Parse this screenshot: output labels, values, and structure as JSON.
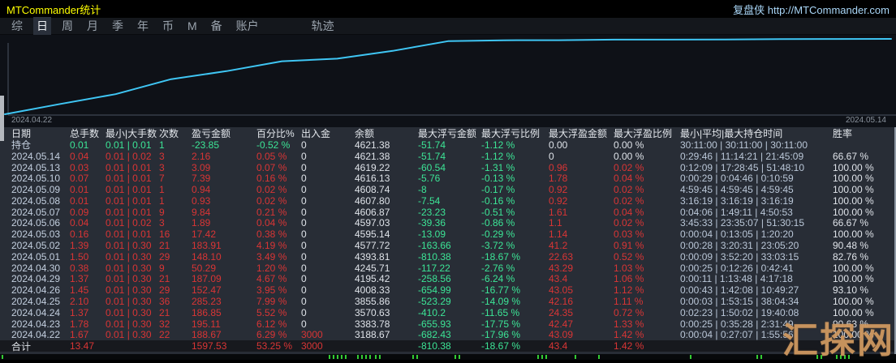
{
  "window": {
    "title": "MTCommander统计",
    "site_link": "复盘侠 http://MTCommander.com"
  },
  "menu": {
    "items": [
      "综",
      "日",
      "周",
      "月",
      "季",
      "年",
      "币",
      "M",
      "备",
      "账户"
    ],
    "active_index": 1,
    "trail_item": "轨迹"
  },
  "chart_data": {
    "type": "line",
    "title": "",
    "x_start_label": "2024.04.22",
    "x_end_label": "2024.05.14",
    "x": [
      "2024.04.22",
      "2024.04.23",
      "2024.04.24",
      "2024.04.25",
      "2024.04.26",
      "2024.04.29",
      "2024.04.30",
      "2024.05.01",
      "2024.05.02",
      "2024.05.03",
      "2024.05.06",
      "2024.05.07",
      "2024.05.08",
      "2024.05.09",
      "2024.05.10",
      "2024.05.13",
      "2024.05.14"
    ],
    "series": [
      {
        "name": "余额",
        "values": [
          3188.67,
          3383.78,
          3570.63,
          3855.86,
          4008.33,
          4195.42,
          4245.71,
          4393.81,
          4577.72,
          4595.14,
          4597.03,
          4606.87,
          4607.8,
          4608.74,
          4616.13,
          4619.22,
          4621.38
        ]
      }
    ],
    "ylim": [
      3188.67,
      4621.38
    ],
    "grid": false,
    "line_color": "#3fc6f4",
    "axis_color": "#4a5360"
  },
  "colors": {
    "title_yellow": "#ffff00",
    "link_blue": "#a9d6f7",
    "positive_red": "#d93535",
    "floating_green": "#3ce596",
    "line_cyan": "#3fc6f4"
  },
  "table": {
    "headers": [
      "日期",
      "总手数",
      "最小|大手数",
      "次数",
      "盈亏金额",
      "百分比%",
      "出入金",
      "余额",
      "最大浮亏金额",
      "最大浮亏比例",
      "最大浮盈金额",
      "最大浮盈比例",
      "最小|平均|最大持仓时间",
      "胜率"
    ],
    "rows": [
      {
        "type": "position",
        "cells": [
          "持仓",
          "0.01",
          "0.01 | 0.01",
          "1",
          "-23.85",
          "-0.52 %",
          "0",
          "4621.38",
          "-51.74",
          "-1.12 %",
          "0.00",
          "0.00 %",
          "30:11:00 | 30:11:00 | 30:11:00",
          ""
        ],
        "colors": [
          "d",
          "g",
          "g",
          "g",
          "g",
          "g",
          "w",
          "w",
          "g",
          "g",
          "w",
          "w",
          "t",
          "w"
        ]
      },
      {
        "type": "normal",
        "cells": [
          "2024.05.14",
          "0.04",
          "0.01 | 0.02",
          "3",
          "2.16",
          "0.05 %",
          "0",
          "4621.38",
          "-51.74",
          "-1.12 %",
          "0",
          "0.00 %",
          "0:29:46 | 11:14:21 | 21:45:09",
          "66.67 %"
        ],
        "colors": [
          "d",
          "r",
          "r",
          "r",
          "r",
          "r",
          "w",
          "w",
          "g",
          "g",
          "w",
          "w",
          "t",
          "w"
        ]
      },
      {
        "type": "normal",
        "cells": [
          "2024.05.13",
          "0.03",
          "0.01 | 0.01",
          "3",
          "3.09",
          "0.07 %",
          "0",
          "4619.22",
          "-60.54",
          "-1.31 %",
          "0.96",
          "0.02 %",
          "0:12:09 | 17:28:45 | 51:48:10",
          "100.00 %"
        ],
        "colors": [
          "d",
          "r",
          "r",
          "r",
          "r",
          "r",
          "w",
          "w",
          "g",
          "g",
          "r",
          "r",
          "t",
          "w"
        ]
      },
      {
        "type": "normal",
        "cells": [
          "2024.05.10",
          "0.07",
          "0.01 | 0.01",
          "7",
          "7.39",
          "0.16 %",
          "0",
          "4616.13",
          "-5.76",
          "-0.13 %",
          "1.78",
          "0.04 %",
          "0:00:29 | 0:04:46 | 0:10:59",
          "100.00 %"
        ],
        "colors": [
          "d",
          "r",
          "r",
          "r",
          "r",
          "r",
          "w",
          "w",
          "g",
          "g",
          "r",
          "r",
          "t",
          "w"
        ]
      },
      {
        "type": "normal",
        "cells": [
          "2024.05.09",
          "0.01",
          "0.01 | 0.01",
          "1",
          "0.94",
          "0.02 %",
          "0",
          "4608.74",
          "-8",
          "-0.17 %",
          "0.92",
          "0.02 %",
          "4:59:45 | 4:59:45 | 4:59:45",
          "100.00 %"
        ],
        "colors": [
          "d",
          "r",
          "r",
          "r",
          "r",
          "r",
          "w",
          "w",
          "g",
          "g",
          "r",
          "r",
          "t",
          "w"
        ]
      },
      {
        "type": "normal",
        "cells": [
          "2024.05.08",
          "0.01",
          "0.01 | 0.01",
          "1",
          "0.93",
          "0.02 %",
          "0",
          "4607.80",
          "-7.54",
          "-0.16 %",
          "0.92",
          "0.02 %",
          "3:16:19 | 3:16:19 | 3:16:19",
          "100.00 %"
        ],
        "colors": [
          "d",
          "r",
          "r",
          "r",
          "r",
          "r",
          "w",
          "w",
          "g",
          "g",
          "r",
          "r",
          "t",
          "w"
        ]
      },
      {
        "type": "normal",
        "cells": [
          "2024.05.07",
          "0.09",
          "0.01 | 0.01",
          "9",
          "9.84",
          "0.21 %",
          "0",
          "4606.87",
          "-23.23",
          "-0.51 %",
          "1.61",
          "0.04 %",
          "0:04:06 | 1:49:11 | 4:50:53",
          "100.00 %"
        ],
        "colors": [
          "d",
          "r",
          "r",
          "r",
          "r",
          "r",
          "w",
          "w",
          "g",
          "g",
          "r",
          "r",
          "t",
          "w"
        ]
      },
      {
        "type": "normal",
        "cells": [
          "2024.05.06",
          "0.04",
          "0.01 | 0.02",
          "3",
          "1.89",
          "0.04 %",
          "0",
          "4597.03",
          "-39.36",
          "-0.86 %",
          "1.1",
          "0.02 %",
          "3:45:33 | 23:35:07 | 51:30:15",
          "66.67 %"
        ],
        "colors": [
          "d",
          "r",
          "r",
          "r",
          "r",
          "r",
          "w",
          "w",
          "g",
          "g",
          "r",
          "r",
          "t",
          "w"
        ]
      },
      {
        "type": "normal",
        "cells": [
          "2024.05.03",
          "0.16",
          "0.01 | 0.01",
          "16",
          "17.42",
          "0.38 %",
          "0",
          "4595.14",
          "-13.09",
          "-0.29 %",
          "1.14",
          "0.03 %",
          "0:00:04 | 0:13:05 | 1:20:20",
          "100.00 %"
        ],
        "colors": [
          "d",
          "r",
          "r",
          "r",
          "r",
          "r",
          "w",
          "w",
          "g",
          "g",
          "r",
          "r",
          "t",
          "w"
        ]
      },
      {
        "type": "normal",
        "cells": [
          "2024.05.02",
          "1.39",
          "0.01 | 0.30",
          "21",
          "183.91",
          "4.19 %",
          "0",
          "4577.72",
          "-163.66",
          "-3.72 %",
          "41.2",
          "0.91 %",
          "0:00:28 | 3:20:31 | 23:05:20",
          "90.48 %"
        ],
        "colors": [
          "d",
          "r",
          "r",
          "r",
          "r",
          "r",
          "w",
          "w",
          "g",
          "g",
          "r",
          "r",
          "t",
          "w"
        ]
      },
      {
        "type": "normal",
        "cells": [
          "2024.05.01",
          "1.50",
          "0.01 | 0.30",
          "29",
          "148.10",
          "3.49 %",
          "0",
          "4393.81",
          "-810.38",
          "-18.67 %",
          "22.63",
          "0.52 %",
          "0:00:09 | 3:52:20 | 33:03:15",
          "82.76 %"
        ],
        "colors": [
          "d",
          "r",
          "r",
          "r",
          "r",
          "r",
          "w",
          "w",
          "g",
          "g",
          "r",
          "r",
          "t",
          "w"
        ]
      },
      {
        "type": "normal",
        "cells": [
          "2024.04.30",
          "0.38",
          "0.01 | 0.30",
          "9",
          "50.29",
          "1.20 %",
          "0",
          "4245.71",
          "-117.22",
          "-2.76 %",
          "43.29",
          "1.03 %",
          "0:00:25 | 0:12:26 | 0:42:41",
          "100.00 %"
        ],
        "colors": [
          "d",
          "r",
          "r",
          "r",
          "r",
          "r",
          "w",
          "w",
          "g",
          "g",
          "r",
          "r",
          "t",
          "w"
        ]
      },
      {
        "type": "normal",
        "cells": [
          "2024.04.29",
          "1.37",
          "0.01 | 0.30",
          "21",
          "187.09",
          "4.67 %",
          "0",
          "4195.42",
          "-258.56",
          "-6.24 %",
          "43.4",
          "1.06 %",
          "0:00:11 | 1:13:48 | 4:17:18",
          "100.00 %"
        ],
        "colors": [
          "d",
          "r",
          "r",
          "r",
          "r",
          "r",
          "w",
          "w",
          "g",
          "g",
          "r",
          "r",
          "t",
          "w"
        ]
      },
      {
        "type": "normal",
        "cells": [
          "2024.04.26",
          "1.45",
          "0.01 | 0.30",
          "29",
          "152.47",
          "3.95 %",
          "0",
          "4008.33",
          "-654.99",
          "-16.77 %",
          "43.05",
          "1.12 %",
          "0:00:43 | 1:42:08 | 10:49:27",
          "93.10 %"
        ],
        "colors": [
          "d",
          "r",
          "r",
          "r",
          "r",
          "r",
          "w",
          "w",
          "g",
          "g",
          "r",
          "r",
          "t",
          "w"
        ]
      },
      {
        "type": "normal",
        "cells": [
          "2024.04.25",
          "2.10",
          "0.01 | 0.30",
          "36",
          "285.23",
          "7.99 %",
          "0",
          "3855.86",
          "-523.29",
          "-14.09 %",
          "42.16",
          "1.11 %",
          "0:00:03 | 1:53:15 | 38:04:34",
          "100.00 %"
        ],
        "colors": [
          "d",
          "r",
          "r",
          "r",
          "r",
          "r",
          "w",
          "w",
          "g",
          "g",
          "r",
          "r",
          "t",
          "w"
        ]
      },
      {
        "type": "normal",
        "cells": [
          "2024.04.24",
          "1.37",
          "0.01 | 0.30",
          "21",
          "186.85",
          "5.52 %",
          "0",
          "3570.63",
          "-410.2",
          "-11.65 %",
          "24.35",
          "0.72 %",
          "0:02:23 | 1:50:02 | 19:40:08",
          "100.00 %"
        ],
        "colors": [
          "d",
          "r",
          "r",
          "r",
          "r",
          "r",
          "w",
          "w",
          "g",
          "g",
          "r",
          "r",
          "t",
          "w"
        ]
      },
      {
        "type": "normal",
        "cells": [
          "2024.04.23",
          "1.78",
          "0.01 | 0.30",
          "32",
          "195.11",
          "6.12 %",
          "0",
          "3383.78",
          "-655.93",
          "-17.75 %",
          "42.47",
          "1.33 %",
          "0:00:25 | 0:35:28 | 2:31:49",
          "90.63 %"
        ],
        "colors": [
          "d",
          "r",
          "r",
          "r",
          "r",
          "r",
          "w",
          "w",
          "g",
          "g",
          "r",
          "r",
          "t",
          "w"
        ]
      },
      {
        "type": "normal",
        "cells": [
          "2024.04.22",
          "1.67",
          "0.01 | 0.30",
          "22",
          "188.67",
          "6.29 %",
          "3000",
          "3188.67",
          "-682.43",
          "-17.96 %",
          "43.09",
          "1.42 %",
          "0:00:04 | 0:27:07 | 1:55:56",
          "100.00 %"
        ],
        "colors": [
          "d",
          "r",
          "r",
          "r",
          "r",
          "r",
          "r",
          "w",
          "g",
          "g",
          "r",
          "r",
          "t",
          "w"
        ]
      },
      {
        "type": "total",
        "cells": [
          "合计",
          "13.47",
          "",
          "",
          "1597.53",
          "53.25 %",
          "3000",
          "",
          "-810.38",
          "-18.67 %",
          "43.4",
          "1.42 %",
          "",
          ""
        ],
        "colors": [
          "w",
          "r",
          "w",
          "w",
          "r",
          "r",
          "r",
          "w",
          "g",
          "g",
          "r",
          "r",
          "t",
          "w"
        ]
      }
    ]
  },
  "activity_strip": {
    "tick_color": "#33cc33",
    "tick_positions": [
      2,
      405,
      410,
      415,
      420,
      425,
      440,
      445,
      450,
      455,
      462,
      467,
      508,
      513,
      560,
      565,
      662,
      667,
      672,
      708,
      737,
      850,
      932,
      937,
      1006,
      1011,
      1030,
      1035,
      1040,
      1045
    ]
  },
  "watermark": {
    "text": "汇探网"
  }
}
